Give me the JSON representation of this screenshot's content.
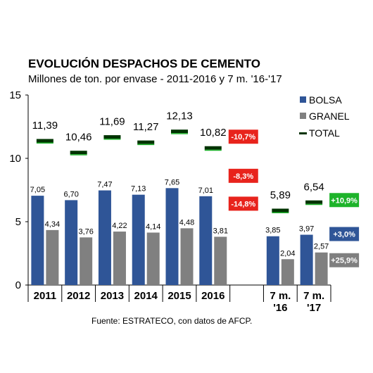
{
  "header": {
    "title": "EVOLUCIÓN DESPACHOS DE CEMENTO",
    "subtitle": "Millones de ton. por envase - 2011-2016 y 7 m. '16-'17"
  },
  "source": "Fuente: ESTRATECO, con datos de AFCP.",
  "colors": {
    "bolsa": "#2f5597",
    "granel": "#808080",
    "total": "#003300",
    "badge_red": "#e8231c",
    "badge_green": "#1db32a",
    "badge_blue": "#2f5597",
    "badge_gray": "#7f7f7f"
  },
  "chart_data": {
    "type": "bar",
    "title": "EVOLUCIÓN DESPACHOS DE CEMENTO",
    "subtitle": "Millones de ton. por envase - 2011-2016 y 7 m. '16-'17",
    "categories": [
      "2011",
      "2012",
      "2013",
      "2014",
      "2015",
      "2016",
      "",
      "7 m. '16",
      "7 m. '17"
    ],
    "category_lines": [
      [
        "2011"
      ],
      [
        "2012"
      ],
      [
        "2013"
      ],
      [
        "2014"
      ],
      [
        "2015"
      ],
      [
        "2016"
      ],
      [],
      [
        "7 m.",
        "'16"
      ],
      [
        "7 m.",
        "'17"
      ]
    ],
    "series": [
      {
        "name": "BOLSA",
        "type": "bar",
        "values": [
          7.05,
          6.7,
          7.47,
          7.13,
          7.65,
          7.01,
          null,
          3.85,
          3.97
        ],
        "labels": [
          "7,05",
          "6,70",
          "7,47",
          "7,13",
          "7,65",
          "7,01",
          "",
          "3,85",
          "3,97"
        ]
      },
      {
        "name": "GRANEL",
        "type": "bar",
        "values": [
          4.34,
          3.76,
          4.22,
          4.14,
          4.48,
          3.81,
          null,
          2.04,
          2.57
        ],
        "labels": [
          "4,34",
          "3,76",
          "4,22",
          "4,14",
          "4,48",
          "3,81",
          "",
          "2,04",
          "2,57"
        ]
      },
      {
        "name": "TOTAL",
        "type": "marker",
        "values": [
          11.39,
          10.46,
          11.69,
          11.27,
          12.13,
          10.82,
          null,
          5.89,
          6.54
        ],
        "labels": [
          "11,39",
          "10,46",
          "11,69",
          "11,27",
          "12,13",
          "10,82",
          "",
          "5,89",
          "6,54"
        ]
      }
    ],
    "ylim": [
      0,
      15
    ],
    "yticks": [
      0,
      5,
      10,
      15
    ],
    "legend_position": "top-right",
    "grid": false,
    "annotations": [
      {
        "text": "-10,7%",
        "series": "TOTAL",
        "category_index": 5,
        "style": "red"
      },
      {
        "text": "-8,3%",
        "series": "BOLSA",
        "category_index": 5,
        "style": "red"
      },
      {
        "text": "-14,8%",
        "series": "GRANEL",
        "category_index": 5,
        "style": "red"
      },
      {
        "text": "+10,9%",
        "series": "TOTAL",
        "category_index": 8,
        "style": "green"
      },
      {
        "text": "+3,0%",
        "series": "BOLSA",
        "category_index": 8,
        "style": "blue"
      },
      {
        "text": "+25,9%",
        "series": "GRANEL",
        "category_index": 8,
        "style": "gray"
      }
    ]
  }
}
